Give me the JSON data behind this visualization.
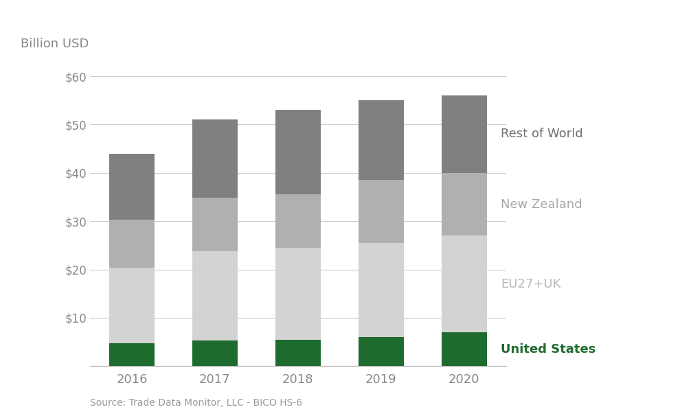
{
  "years": [
    "2016",
    "2017",
    "2018",
    "2019",
    "2020"
  ],
  "series": {
    "United States": [
      4.8,
      5.3,
      5.5,
      6.0,
      7.0
    ],
    "EU27+UK": [
      15.5,
      18.5,
      19.0,
      19.5,
      20.0
    ],
    "New Zealand": [
      10.0,
      11.0,
      11.0,
      13.0,
      13.0
    ],
    "Rest of World": [
      13.7,
      16.2,
      17.5,
      16.5,
      16.0
    ]
  },
  "colors": {
    "United States": "#1e6b2e",
    "EU27+UK": "#d3d3d3",
    "New Zealand": "#b0b0b0",
    "Rest of World": "#808080"
  },
  "ylim": [
    0,
    62
  ],
  "yticks": [
    0,
    10,
    20,
    30,
    40,
    50,
    60
  ],
  "ytick_labels": [
    "",
    "$10",
    "$20",
    "$30",
    "$40",
    "$50",
    "$60"
  ],
  "ylabel_text": "Billion USD",
  "source_text": "Source: Trade Data Monitor, LLC - BICO HS-6",
  "legend_entries": [
    {
      "label": "Rest of World",
      "color": "#707070",
      "bold": false
    },
    {
      "label": "New Zealand",
      "color": "#a8a8a8",
      "bold": false
    },
    {
      "label": "EU27+UK",
      "color": "#b8b8b8",
      "bold": false
    },
    {
      "label": "United States",
      "color": "#1e6b2e",
      "bold": true
    }
  ],
  "bar_width": 0.55,
  "background_color": "#ffffff",
  "grid_color": "#cccccc"
}
